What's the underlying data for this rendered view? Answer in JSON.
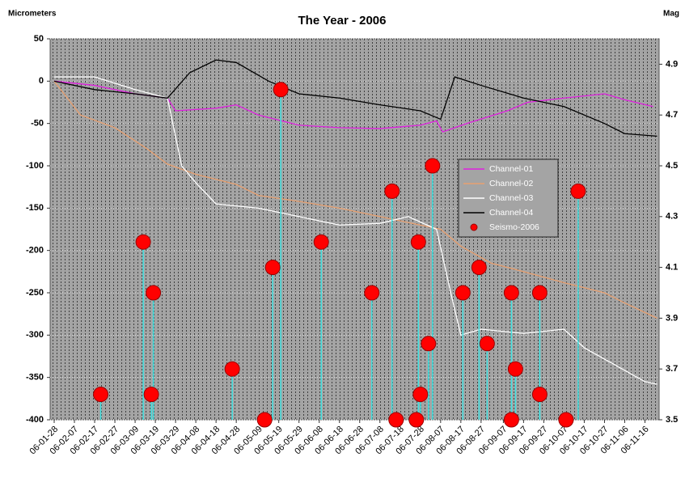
{
  "chart_data": {
    "type": "line",
    "title": "The Year - 2006",
    "y_label": "Micrometers",
    "y2_label": "Mag",
    "ylim": [
      -400,
      50
    ],
    "yticks": [
      50,
      0,
      -50,
      -100,
      -150,
      -200,
      -250,
      -300,
      -350,
      -400
    ],
    "y2lim": [
      3.5,
      5.0
    ],
    "y2ticks": [
      3.5,
      3.7,
      3.9,
      4.1,
      4.3,
      4.5,
      4.7,
      4.9
    ],
    "xlim": [
      "06-01-26",
      "06-11-23"
    ],
    "xticks": [
      "06-01-28",
      "06-02-07",
      "06-02-17",
      "06-02-27",
      "06-03-09",
      "06-03-19",
      "06-03-29",
      "06-04-08",
      "06-04-18",
      "06-04-28",
      "06-05-09",
      "06-05-19",
      "06-05-29",
      "06-06-08",
      "06-06-18",
      "06-06-28",
      "06-07-08",
      "06-07-18",
      "06-07-28",
      "06-08-07",
      "06-08-17",
      "06-08-27",
      "06-09-07",
      "06-09-17",
      "06-09-27",
      "06-10-07",
      "06-10-17",
      "06-10-27",
      "06-11-06",
      "06-11-16"
    ],
    "grid": true,
    "series": [
      {
        "name": "Channel-01",
        "color": "#e020e0",
        "x": [
          "06-01-28",
          "06-02-17",
          "06-03-09",
          "06-03-25",
          "06-03-29",
          "06-04-18",
          "06-04-28",
          "06-05-09",
          "06-05-29",
          "06-06-18",
          "06-07-08",
          "06-07-28",
          "06-08-05",
          "06-08-08",
          "06-08-20",
          "06-09-09",
          "06-09-19",
          "06-10-07",
          "06-10-27",
          "06-11-06",
          "06-11-20"
        ],
        "values": [
          0,
          -5,
          -15,
          -20,
          -35,
          -32,
          -28,
          -40,
          -52,
          -55,
          -56,
          -52,
          -47,
          -60,
          -50,
          -35,
          -25,
          -20,
          -15,
          -22,
          -30
        ]
      },
      {
        "name": "Channel-02",
        "color": "#e8a070",
        "x": [
          "06-01-28",
          "06-02-10",
          "06-02-27",
          "06-03-15",
          "06-03-25",
          "06-04-08",
          "06-04-28",
          "06-05-09",
          "06-05-29",
          "06-06-18",
          "06-07-08",
          "06-07-28",
          "06-08-07",
          "06-08-17",
          "06-09-01",
          "06-09-17",
          "06-10-07",
          "06-10-27",
          "06-11-06",
          "06-11-22"
        ],
        "values": [
          0,
          -40,
          -55,
          -80,
          -98,
          -110,
          -122,
          -135,
          -142,
          -150,
          -160,
          -170,
          -175,
          -195,
          -215,
          -225,
          -238,
          -250,
          -262,
          -280
        ]
      },
      {
        "name": "Channel-03",
        "color": "#ffffff",
        "x": [
          "06-01-28",
          "06-02-17",
          "06-03-09",
          "06-03-25",
          "06-04-01",
          "06-04-08",
          "06-04-18",
          "06-05-09",
          "06-05-29",
          "06-06-18",
          "06-07-08",
          "06-07-22",
          "06-08-05",
          "06-08-12",
          "06-08-17",
          "06-08-27",
          "06-09-17",
          "06-10-07",
          "06-10-17",
          "06-11-01",
          "06-11-16",
          "06-11-22"
        ],
        "values": [
          5,
          5,
          -10,
          -20,
          -100,
          -120,
          -145,
          -150,
          -160,
          -170,
          -168,
          -160,
          -175,
          -250,
          -300,
          -293,
          -298,
          -293,
          -315,
          -335,
          -355,
          -358
        ]
      },
      {
        "name": "Channel-04",
        "color": "#000000",
        "x": [
          "06-01-28",
          "06-02-17",
          "06-03-09",
          "06-03-25",
          "06-04-05",
          "06-04-18",
          "06-04-28",
          "06-05-14",
          "06-05-29",
          "06-06-18",
          "06-07-08",
          "06-07-28",
          "06-08-07",
          "06-08-14",
          "06-08-27",
          "06-09-17",
          "06-10-07",
          "06-10-27",
          "06-11-06",
          "06-11-22"
        ],
        "values": [
          0,
          -10,
          -15,
          -20,
          10,
          25,
          22,
          0,
          -15,
          -20,
          -28,
          -35,
          -45,
          5,
          -5,
          -20,
          -30,
          -50,
          -62,
          -65
        ]
      },
      {
        "name": "Seismo-2006",
        "color": "#ff0000",
        "line_color": "#40e0e0",
        "axis": "y2",
        "type": "scatter",
        "x": [
          "06-02-20",
          "06-03-13",
          "06-03-17",
          "06-03-18",
          "06-04-26",
          "06-05-12",
          "06-05-16",
          "06-05-20",
          "06-06-09",
          "06-07-04",
          "06-07-14",
          "06-07-16",
          "06-07-26",
          "06-07-27",
          "06-07-28",
          "06-08-01",
          "06-08-03",
          "06-08-18",
          "06-08-26",
          "06-08-30",
          "06-09-11",
          "06-09-13",
          "06-09-11",
          "06-09-25",
          "06-09-25",
          "06-10-08",
          "06-10-14"
        ],
        "values": [
          3.6,
          4.2,
          3.6,
          4.0,
          3.7,
          3.5,
          4.1,
          4.8,
          4.2,
          4.0,
          4.4,
          3.5,
          3.5,
          4.2,
          3.6,
          3.8,
          4.5,
          4.0,
          4.1,
          3.8,
          4.0,
          3.7,
          3.5,
          4.0,
          3.6,
          3.5,
          4.4
        ]
      }
    ]
  }
}
